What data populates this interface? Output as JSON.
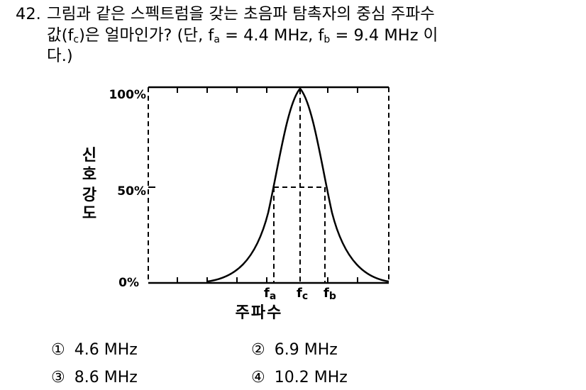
{
  "question": {
    "number": "42.",
    "line1": "그림과 같은 스펙트럼을 갖는 초음파 탐촉자의 중심 주파수",
    "line2_a": "값(f",
    "line2_sub_c": "c",
    "line2_b": ")은 얼마인가? (단, f",
    "line2_sub_a": "a",
    "line2_c": " = 4.4 MHz, f",
    "line2_sub_b": "b",
    "line2_d": " = 9.4 MHz 이",
    "line3": "다.)"
  },
  "figure": {
    "y_tick_100": "100%",
    "y_tick_50": "50%",
    "y_tick_0": "0%",
    "y_label_chars": [
      "신",
      "호",
      "강",
      "도"
    ],
    "x_label": "주파수",
    "fa_f": "f",
    "fa_sub": "a",
    "fc_f": "f",
    "fc_sub": "c",
    "fb_f": "f",
    "fb_sub": "b"
  },
  "options": [
    {
      "marker": "①",
      "text": "4.6 MHz"
    },
    {
      "marker": "②",
      "text": "6.9 MHz"
    },
    {
      "marker": "③",
      "text": "8.6 MHz"
    },
    {
      "marker": "④",
      "text": "10.2 MHz"
    }
  ]
}
